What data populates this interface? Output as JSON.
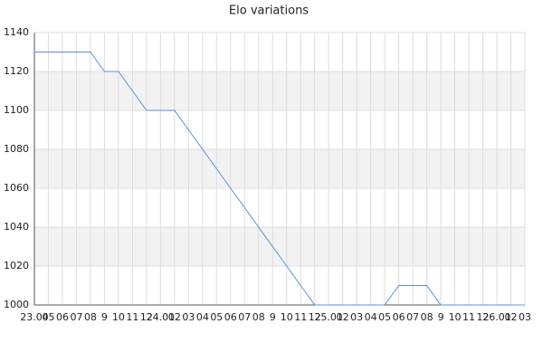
{
  "chart_data": {
    "type": "line",
    "title": "Elo variations",
    "categories": [
      "23.04",
      "05",
      "06",
      "07",
      "08",
      "9",
      "10",
      "11",
      "12",
      "24.01",
      "02",
      "03",
      "04",
      "05",
      "06",
      "07",
      "08",
      "9",
      "10",
      "11",
      "12",
      "25.01",
      "02",
      "03",
      "04",
      "05",
      "06",
      "07",
      "08",
      "9",
      "10",
      "11",
      "12",
      "26.01",
      "02",
      "03"
    ],
    "series": [
      {
        "name": "Elo",
        "color": "#5b8fd6",
        "values": [
          1130,
          1130,
          1130,
          1130,
          1130,
          1120,
          1120,
          1110,
          1100,
          1100,
          1100,
          1090,
          1080,
          1070,
          1060,
          1050,
          1040,
          1030,
          1020,
          1010,
          1000,
          1000,
          1000,
          1000,
          1000,
          1000,
          1010,
          1010,
          1010,
          1000,
          1000,
          1000,
          1000,
          1000,
          1000,
          1000
        ]
      }
    ],
    "ylim": [
      1000,
      1140
    ],
    "yticks": [
      1000,
      1020,
      1040,
      1060,
      1080,
      1100,
      1120,
      1140
    ],
    "grid": true
  }
}
